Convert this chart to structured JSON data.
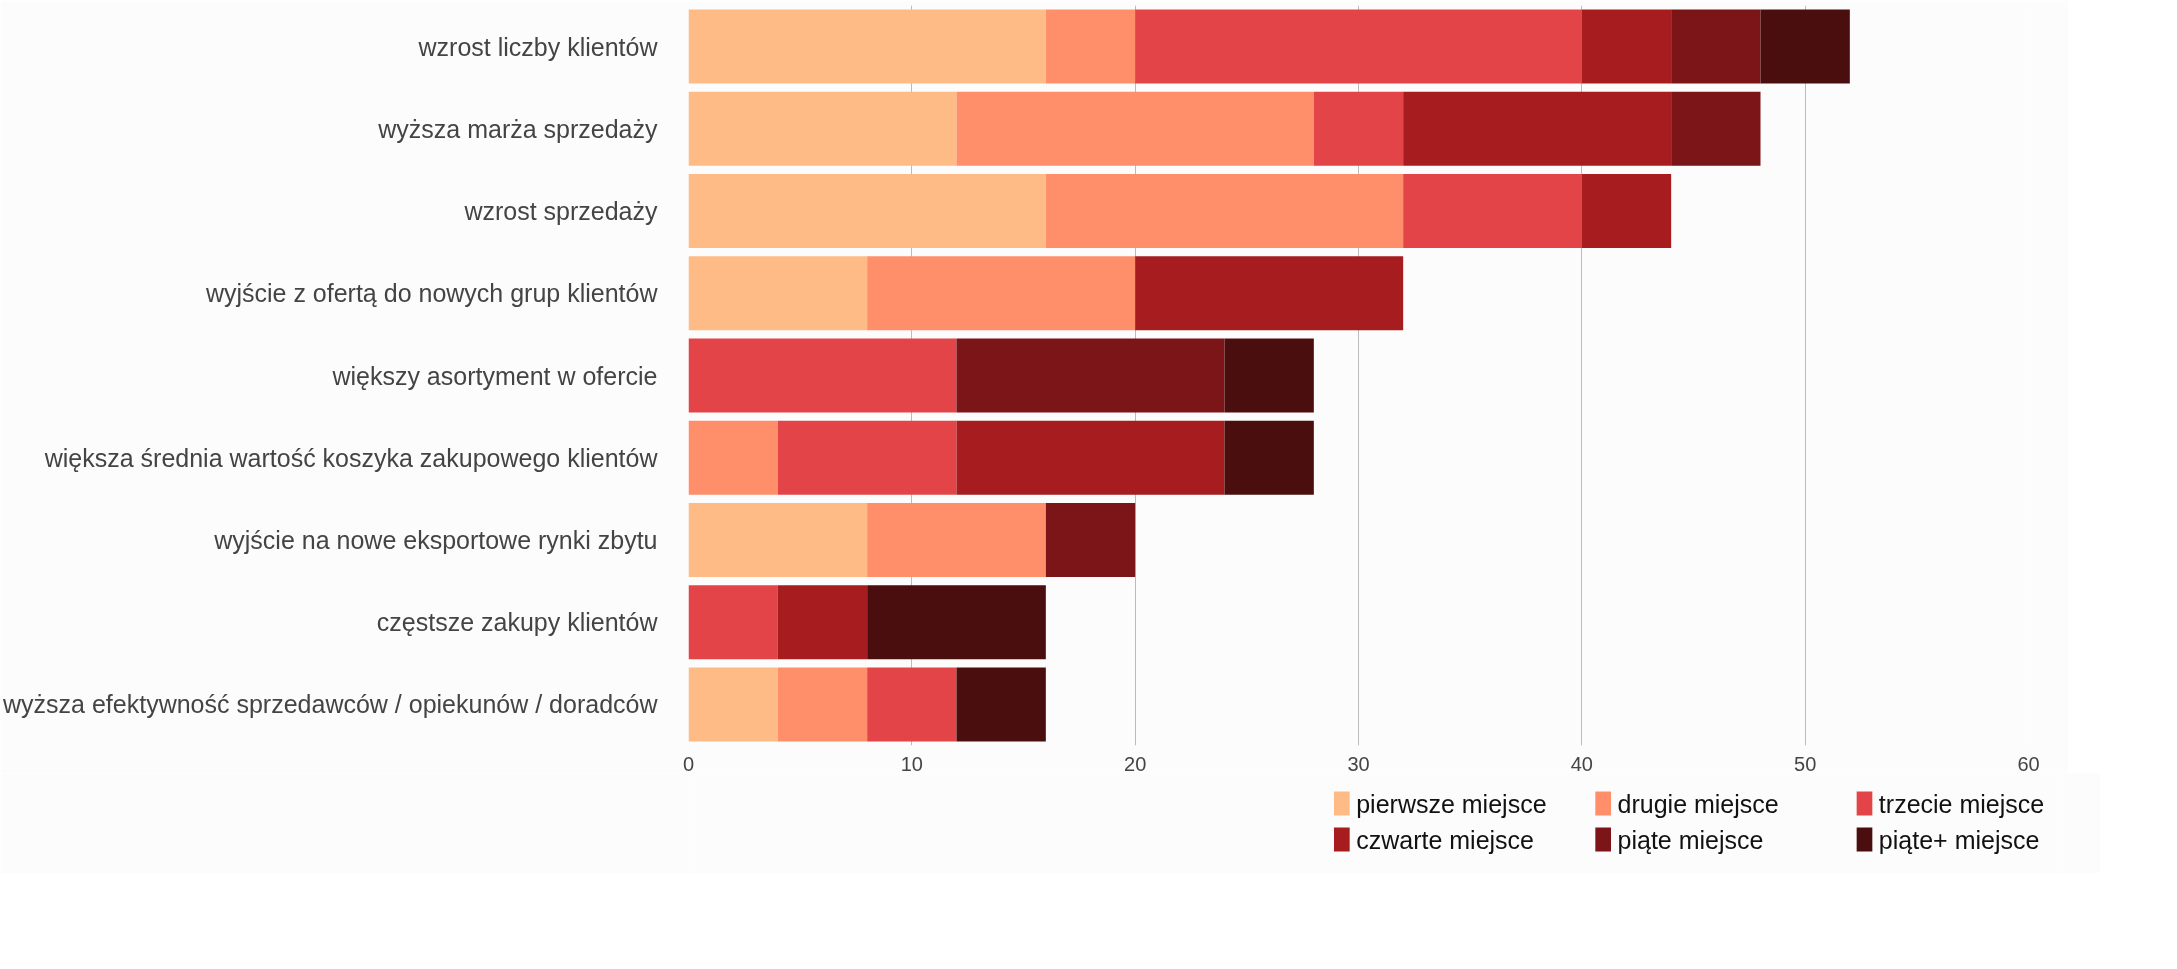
{
  "chart_data": {
    "type": "bar",
    "orientation": "horizontal",
    "stacked": true,
    "categories": [
      "wzrost liczby klientów",
      "wyższa marża sprzedaży",
      "wzrost sprzedaży",
      "wyjście z ofertą do nowych grup klientów",
      "większy asortyment w ofercie",
      "większa średnia wartość koszyka zakupowego klientów",
      "wyjście na nowe eksportowe rynki zbytu",
      "częstsze zakupy klientów",
      "wyższa efektywność sprzedawców / opiekunów / doradców"
    ],
    "series": [
      {
        "name": "pierwsze miejsce",
        "color": "#ffbb85",
        "values": [
          16,
          12,
          16,
          8,
          0,
          0,
          8,
          0,
          4
        ]
      },
      {
        "name": "drugie miejsce",
        "color": "#ff8f6b",
        "values": [
          4,
          16,
          16,
          12,
          0,
          4,
          8,
          0,
          4
        ]
      },
      {
        "name": "trzecie miejsce",
        "color": "#e34447",
        "values": [
          20,
          4,
          8,
          0,
          12,
          8,
          0,
          4,
          4
        ]
      },
      {
        "name": "czwarte miejsce",
        "color": "#a61c1f",
        "values": [
          4,
          12,
          4,
          12,
          0,
          12,
          0,
          4,
          0
        ]
      },
      {
        "name": "piąte miejsce",
        "color": "#7b1518",
        "values": [
          4,
          4,
          0,
          0,
          12,
          0,
          4,
          0,
          0
        ]
      },
      {
        "name": "piąte+ miejsce",
        "color": "#4a0e0e",
        "values": [
          4,
          0,
          0,
          0,
          4,
          4,
          0,
          8,
          4
        ]
      }
    ],
    "xlim": [
      0,
      60
    ],
    "xticks": [
      0,
      10,
      20,
      30,
      40,
      50,
      60
    ],
    "grid": "x",
    "legend": "bottom"
  }
}
